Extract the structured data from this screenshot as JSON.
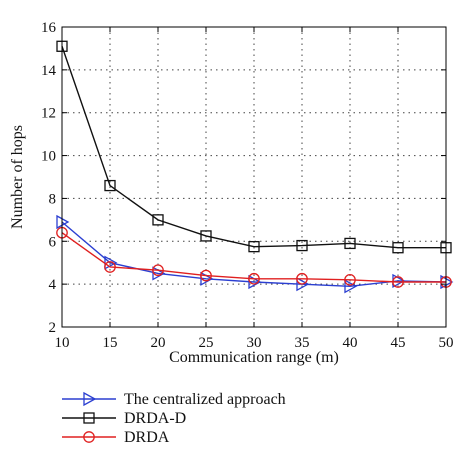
{
  "chart_data": {
    "type": "line",
    "xlabel": "Communication range (m)",
    "ylabel": "Number of hops",
    "x": [
      10,
      15,
      20,
      25,
      30,
      35,
      40,
      45,
      50
    ],
    "xlim": [
      10,
      50
    ],
    "ylim": [
      2,
      16
    ],
    "xticks": [
      10,
      15,
      20,
      25,
      30,
      35,
      40,
      45,
      50
    ],
    "yticks": [
      2,
      4,
      6,
      8,
      10,
      12,
      14,
      16
    ],
    "grid": true,
    "legend_position": "bottom-left, below plot",
    "series": [
      {
        "name": "The centralized approach",
        "color": "#2b3fd1",
        "marker": "triangle-right",
        "values": [
          6.9,
          5.0,
          4.5,
          4.25,
          4.1,
          4.0,
          3.9,
          4.15,
          4.1
        ]
      },
      {
        "name": "DRDA-D",
        "color": "#111111",
        "marker": "square",
        "values": [
          15.1,
          8.6,
          7.0,
          6.25,
          5.75,
          5.8,
          5.9,
          5.7,
          5.7
        ]
      },
      {
        "name": "DRDA",
        "color": "#e02020",
        "marker": "circle",
        "values": [
          6.4,
          4.8,
          4.65,
          4.4,
          4.25,
          4.25,
          4.2,
          4.1,
          4.1
        ]
      }
    ]
  }
}
